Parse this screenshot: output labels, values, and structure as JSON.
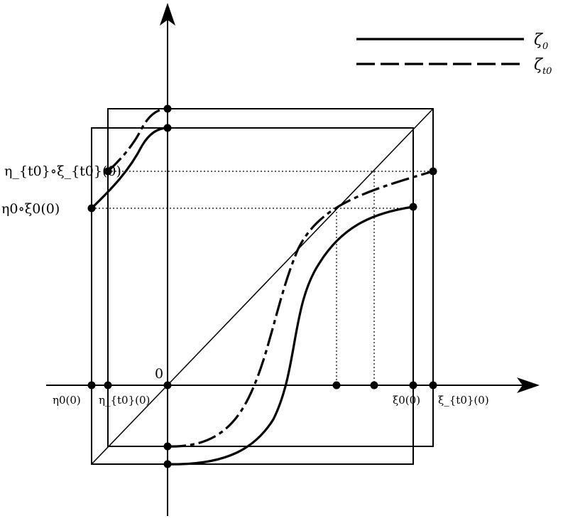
{
  "legend": [
    {
      "name": "ζ0",
      "base": "ζ",
      "sub": "0",
      "style": "solid"
    },
    {
      "name": "ζt0",
      "base": "ζ",
      "sub": "t0",
      "style": "dashed"
    }
  ],
  "origin_label": "0",
  "y_labels": {
    "composite_t0": "η_{t0}∘ξ_{t0}(0)",
    "composite_0": "η0∘ξ0(0)"
  },
  "x_labels": {
    "eta0": "η0(0)",
    "eta_t0": "η_{t0}(0)",
    "xi0": "ξ0(0)",
    "xi_t0": "ξ_{t0}(0)"
  },
  "colors": {
    "ink": "#000000",
    "background": "#ffffff"
  }
}
